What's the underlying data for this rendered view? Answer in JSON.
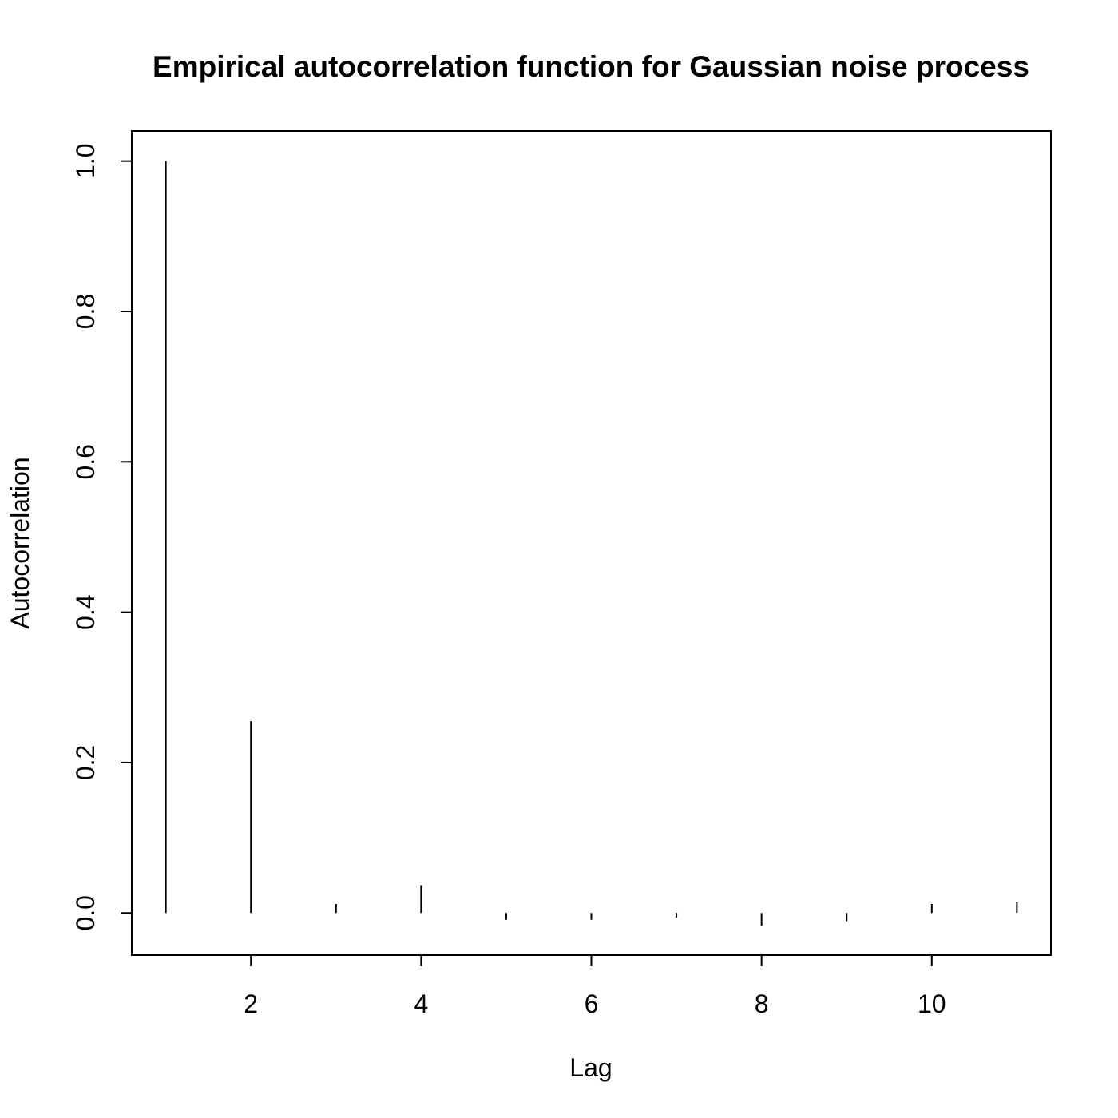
{
  "chart_data": {
    "type": "bar",
    "title": "Empirical autocorrelation function for Gaussian noise process",
    "xlabel": "Lag",
    "ylabel": "Autocorrelation",
    "x": [
      1,
      2,
      3,
      4,
      5,
      6,
      7,
      8,
      9,
      10,
      11
    ],
    "values": [
      1.0,
      0.255,
      0.012,
      0.037,
      -0.009,
      -0.009,
      -0.006,
      -0.017,
      -0.011,
      0.012,
      0.015
    ],
    "xlim": [
      0.6,
      11.4
    ],
    "ylim": [
      -0.056,
      1.04
    ],
    "xticks": [
      2,
      4,
      6,
      8,
      10
    ],
    "xtick_labels": [
      "2",
      "4",
      "6",
      "8",
      "10"
    ],
    "yticks": [
      0.0,
      0.2,
      0.4,
      0.6,
      0.8,
      1.0
    ],
    "ytick_labels": [
      "0.0",
      "0.2",
      "0.4",
      "0.6",
      "0.8",
      "1.0"
    ],
    "grid": false,
    "line_color": "#000000"
  }
}
